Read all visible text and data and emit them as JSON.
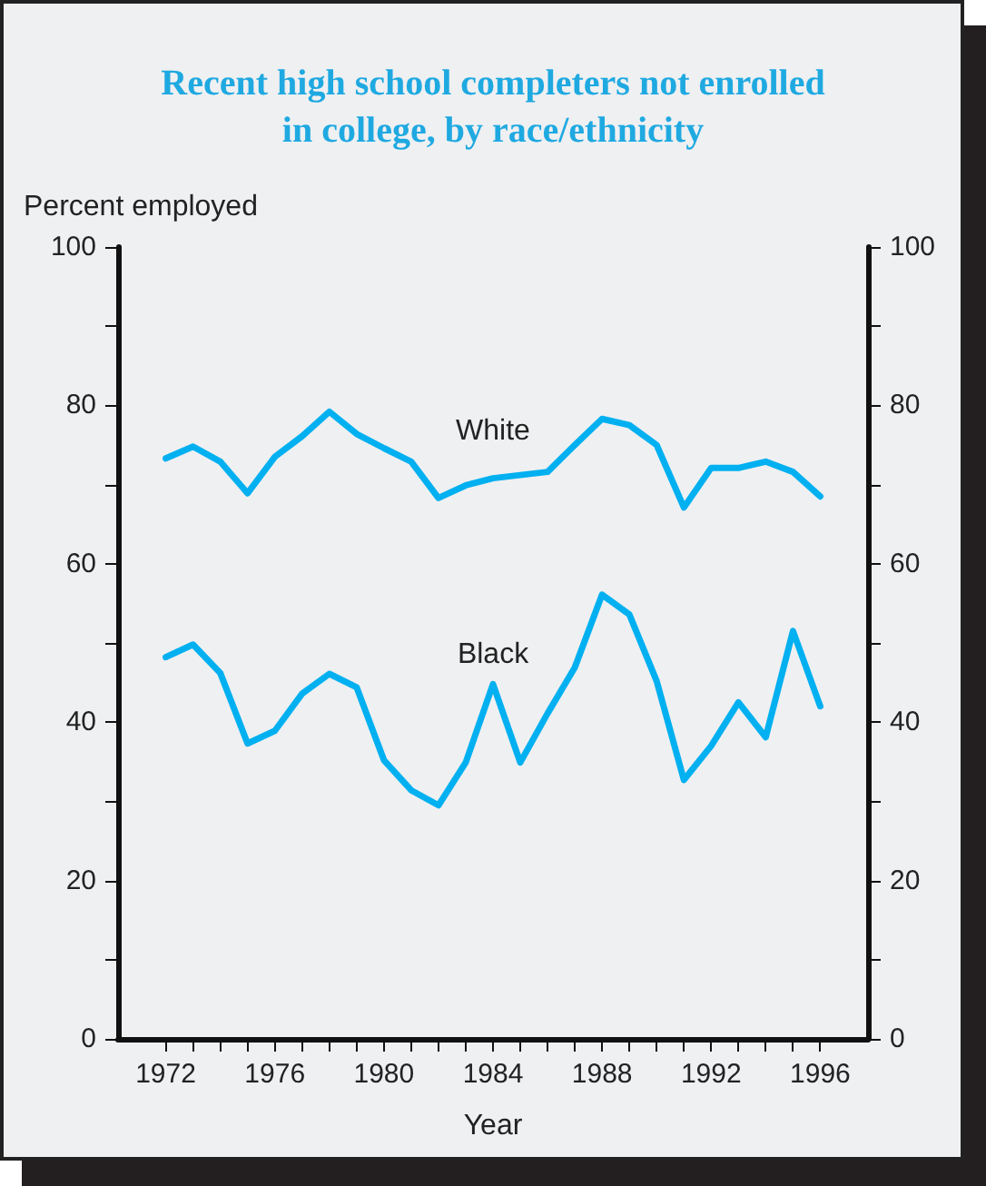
{
  "chart_data": {
    "type": "line",
    "title": "Recent high school completers not enrolled\nin college, by race/ethnicity",
    "xlabel": "Year",
    "ylabel": "Percent employed",
    "x": [
      1972,
      1973,
      1974,
      1975,
      1976,
      1977,
      1978,
      1979,
      1980,
      1981,
      1982,
      1983,
      1984,
      1985,
      1986,
      1987,
      1988,
      1989,
      1990,
      1991,
      1992,
      1993,
      1994,
      1995,
      1996
    ],
    "series": [
      {
        "name": "White",
        "color": "#00b0f0",
        "values": [
          73.3,
          74.8,
          72.9,
          68.9,
          73.5,
          76.1,
          79.2,
          76.4,
          74.6,
          72.9,
          68.3,
          69.9,
          70.8,
          71.2,
          71.6,
          75.0,
          78.3,
          77.5,
          75.0,
          67.1,
          72.1,
          72.1,
          72.9,
          71.6,
          68.5
        ]
      },
      {
        "name": "Black",
        "color": "#00b0f0",
        "values": [
          48.2,
          49.8,
          46.2,
          37.3,
          38.9,
          43.6,
          46.1,
          44.4,
          35.2,
          31.4,
          29.5,
          34.9,
          44.8,
          34.9,
          41.1,
          46.9,
          56.1,
          53.6,
          45.2,
          32.7,
          37.0,
          42.5,
          38.1,
          51.5,
          42.0
        ]
      }
    ],
    "xlim": [
      1970.25,
      1997.75
    ],
    "xticks": [
      1972,
      {
        "value": 1973,
        "label": null
      },
      {
        "value": 1974,
        "label": null
      },
      {
        "value": 1975,
        "label": null
      },
      1976,
      {
        "value": 1977,
        "label": null
      },
      {
        "value": 1978,
        "label": null
      },
      {
        "value": 1979,
        "label": null
      },
      1980,
      {
        "value": 1981,
        "label": null
      },
      {
        "value": 1982,
        "label": null
      },
      {
        "value": 1983,
        "label": null
      },
      1984,
      {
        "value": 1985,
        "label": null
      },
      {
        "value": 1986,
        "label": null
      },
      {
        "value": 1987,
        "label": null
      },
      1988,
      {
        "value": 1989,
        "label": null
      },
      {
        "value": 1990,
        "label": null
      },
      {
        "value": 1991,
        "label": null
      },
      1992,
      {
        "value": 1993,
        "label": null
      },
      {
        "value": 1994,
        "label": null
      },
      {
        "value": 1995,
        "label": null
      },
      1996
    ],
    "ylim": [
      0,
      100
    ],
    "yticks": [
      0,
      {
        "value": 10,
        "label": null
      },
      20,
      {
        "value": 30,
        "label": null
      },
      40,
      {
        "value": 50,
        "label": null
      },
      60,
      {
        "value": 70,
        "label": null
      },
      80,
      {
        "value": 90,
        "label": null
      },
      100
    ],
    "y2lim": [
      0,
      100
    ],
    "y2ticks": [
      0,
      {
        "value": 10,
        "label": null
      },
      20,
      {
        "value": 30,
        "label": null
      },
      40,
      {
        "value": 50,
        "label": null
      },
      60,
      {
        "value": 70,
        "label": null
      },
      80,
      {
        "value": 90,
        "label": null
      },
      100
    ],
    "grid": false,
    "legend": false,
    "marker": "none",
    "line_style": "solid"
  }
}
